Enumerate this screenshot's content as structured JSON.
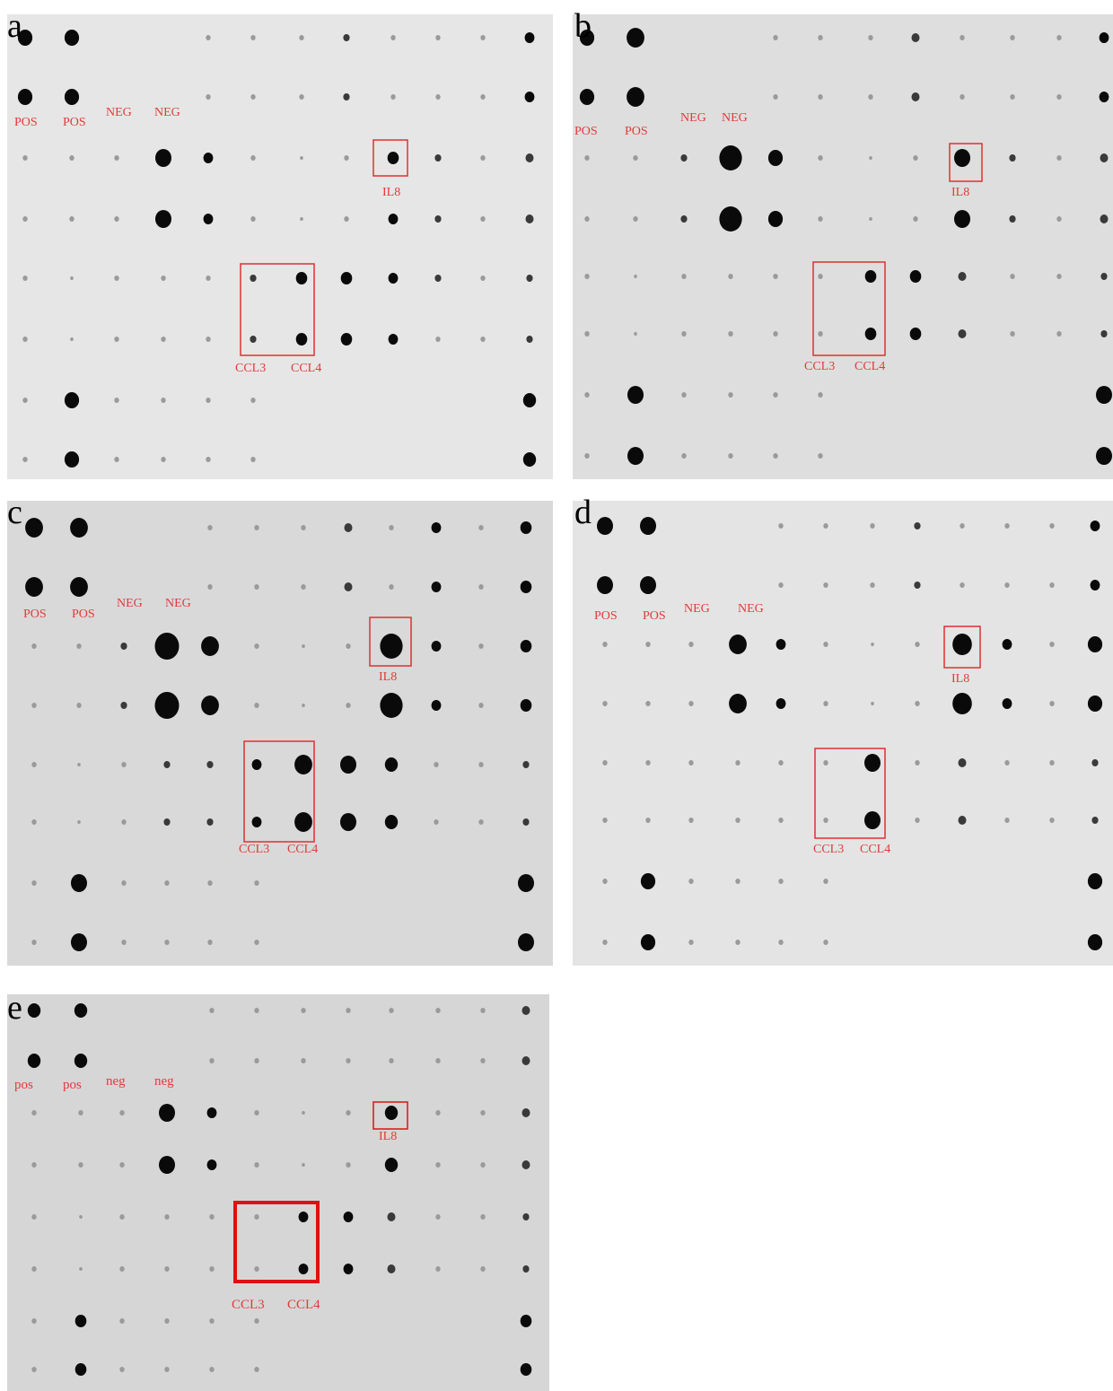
{
  "figure": {
    "panels": [
      {
        "id": "a",
        "label": "a",
        "annotations": {
          "pos1": "POS",
          "pos2": "POS",
          "neg1": "NEG",
          "neg2": "NEG",
          "il8": "IL8",
          "ccl3": "CCL3",
          "ccl4": "CCL4"
        },
        "background": "#e6e6e6",
        "box_color": "#e03030"
      },
      {
        "id": "b",
        "label": "b",
        "annotations": {
          "pos1": "POS",
          "pos2": "POS",
          "neg1": "NEG",
          "neg2": "NEG",
          "il8": "IL8",
          "ccl3": "CCL3",
          "ccl4": "CCL4"
        },
        "background": "#dedede",
        "box_color": "#e03030"
      },
      {
        "id": "c",
        "label": "c",
        "annotations": {
          "pos1": "POS",
          "pos2": "POS",
          "neg1": "NEG",
          "neg2": "NEG",
          "il8": "IL8",
          "ccl3": "CCL3",
          "ccl4": "CCL4"
        },
        "background": "#d9d9d9",
        "box_color": "#e03030"
      },
      {
        "id": "d",
        "label": "d",
        "annotations": {
          "pos1": "POS",
          "pos2": "POS",
          "neg1": "NEG",
          "neg2": "NEG",
          "il8": "IL8",
          "ccl3": "CCL3",
          "ccl4": "CCL4"
        },
        "background": "#e4e4e4",
        "box_color": "#e03030"
      },
      {
        "id": "e",
        "label": "e",
        "annotations": {
          "pos1": "pos",
          "pos2": "pos",
          "neg1": "neg",
          "neg2": "neg",
          "il8": "IL8",
          "ccl3": "CCL3",
          "ccl4": "CCL4"
        },
        "background": "#d6d6d6",
        "box_color": "#e01010"
      }
    ]
  }
}
